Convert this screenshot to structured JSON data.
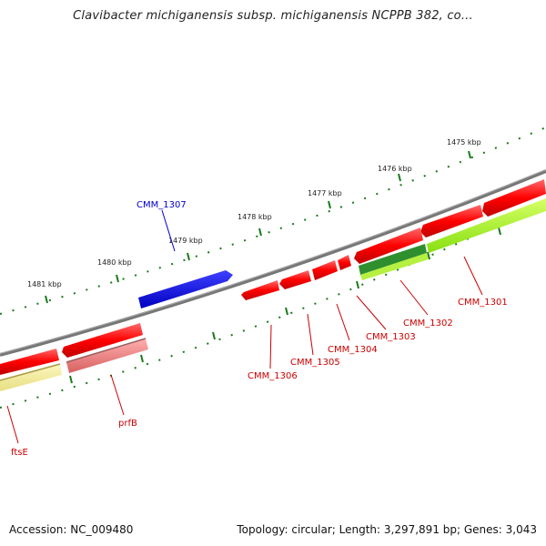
{
  "title": "Clavibacter michiganensis subsp. michiganensis NCPPB 382, co...",
  "footer": {
    "accession": "Accession: NC_009480",
    "summary": "Topology: circular; Length: 3,297,891 bp; Genes: 3,043"
  },
  "scale_labels": [
    "1475 kbp",
    "1476 kbp",
    "1477 kbp",
    "1478 kbp",
    "1479 kbp",
    "1480 kbp",
    "1481 kbp"
  ],
  "gene_labels": [
    {
      "name": "CMM_1307",
      "color": "#0000cc"
    },
    {
      "name": "CMM_1301",
      "color": "#cc0000"
    },
    {
      "name": "CMM_1302",
      "color": "#cc0000"
    },
    {
      "name": "CMM_1303",
      "color": "#cc0000"
    },
    {
      "name": "CMM_1304",
      "color": "#cc0000"
    },
    {
      "name": "CMM_1305",
      "color": "#cc0000"
    },
    {
      "name": "CMM_1306",
      "color": "#cc0000"
    },
    {
      "name": "prfB",
      "color": "#cc0000"
    },
    {
      "name": "ftsE",
      "color": "#cc0000"
    }
  ],
  "colors": {
    "backbone": "#777777",
    "forward_gene": "#ff0000",
    "reverse_gene": "#ff0000",
    "crossing_gene": "#0000ee",
    "pseudo_gene": "#f08080",
    "cds_green": "#aaff33",
    "cds_dark_green": "#2f8f2f",
    "cds_yellow": "#f5ee99",
    "tick": "#1a7a1a"
  }
}
